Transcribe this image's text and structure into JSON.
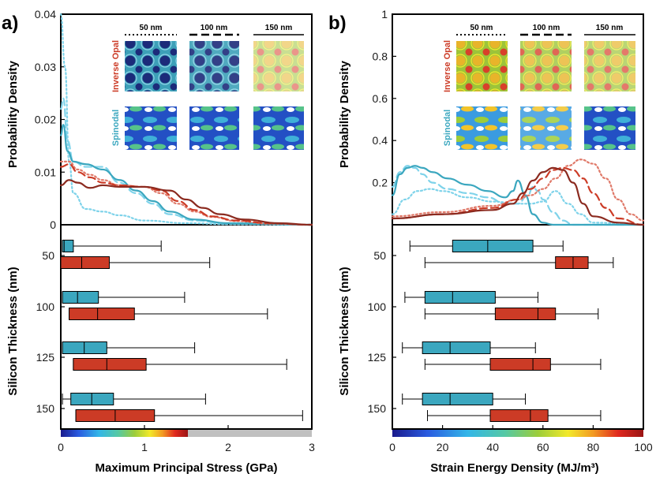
{
  "colors": {
    "spinodal": "#3ba7bf",
    "inverse_opal": "#cc3b26",
    "median_dark": "#8b2a1f",
    "axis": "#000000"
  },
  "chart_data": [
    {
      "panel": "a)",
      "type": "line",
      "xlabel": "Maximum Principal Stress (GPa)",
      "ylabel": "Probability Density",
      "xlim": [
        0,
        3
      ],
      "ylim": [
        0,
        0.04
      ],
      "x_ticks": [
        "0",
        "1",
        "2",
        "3"
      ],
      "y_ticks": [
        "0",
        "0.01",
        "0.02",
        "0.03",
        "0.04"
      ],
      "inset": {
        "scale_labels": [
          "50 nm",
          "100 nm",
          "150 nm"
        ],
        "row_labels": [
          "Inverse Opal",
          "Spinodal"
        ]
      },
      "series": [
        {
          "style": "dotted",
          "color": "#7fd3ea",
          "x": [
            0,
            0.05,
            0.1,
            0.15,
            0.3,
            0.5,
            0.7,
            1.0,
            1.5,
            2,
            3
          ],
          "y": [
            0.04,
            0.03,
            0.012,
            0.006,
            0.003,
            0.0025,
            0.0018,
            0.0008,
            0.0003,
            0.0001,
            0
          ]
        },
        {
          "style": "dashed",
          "color": "#7fd3ea",
          "x": [
            0,
            0.03,
            0.08,
            0.15,
            0.3,
            0.5,
            0.7,
            0.9,
            1.1,
            1.3,
            1.6,
            2,
            3
          ],
          "y": [
            0.022,
            0.024,
            0.016,
            0.012,
            0.011,
            0.011,
            0.008,
            0.006,
            0.004,
            0.002,
            0.0008,
            0.0002,
            0
          ]
        },
        {
          "style": "solid",
          "color": "#3ba7bf",
          "x": [
            0,
            0.03,
            0.08,
            0.15,
            0.3,
            0.5,
            0.7,
            0.9,
            1.1,
            1.3,
            1.6,
            2,
            3
          ],
          "y": [
            0.017,
            0.019,
            0.014,
            0.012,
            0.0115,
            0.0105,
            0.0085,
            0.0065,
            0.0045,
            0.0025,
            0.001,
            0.0003,
            0
          ]
        },
        {
          "style": "dotted",
          "color": "#e07a6a",
          "x": [
            0,
            0.1,
            0.2,
            0.35,
            0.5,
            0.7,
            1.0,
            1.2,
            1.4,
            1.6,
            1.8,
            2.1,
            2.5,
            3
          ],
          "y": [
            0.012,
            0.012,
            0.0105,
            0.0095,
            0.0085,
            0.0075,
            0.0072,
            0.006,
            0.004,
            0.0025,
            0.0015,
            0.0007,
            0.0002,
            0
          ]
        },
        {
          "style": "dashed",
          "color": "#cc3b26",
          "x": [
            0,
            0.1,
            0.2,
            0.35,
            0.5,
            0.7,
            1.0,
            1.2,
            1.4,
            1.6,
            1.8,
            2.1,
            2.5,
            3
          ],
          "y": [
            0.011,
            0.0115,
            0.01,
            0.009,
            0.008,
            0.0075,
            0.0072,
            0.0065,
            0.0045,
            0.0028,
            0.0016,
            0.0008,
            0.0003,
            0
          ]
        },
        {
          "style": "solid",
          "color": "#8b2a1f",
          "x": [
            0,
            0.1,
            0.2,
            0.35,
            0.5,
            0.7,
            1.0,
            1.3,
            1.5,
            1.7,
            1.9,
            2.2,
            2.6,
            3
          ],
          "y": [
            0.0075,
            0.0085,
            0.008,
            0.007,
            0.0075,
            0.0072,
            0.0072,
            0.0065,
            0.0048,
            0.0032,
            0.002,
            0.001,
            0.0003,
            0
          ]
        }
      ]
    },
    {
      "panel": "a)",
      "type": "box",
      "orientation": "horizontal",
      "ylabel": "Silicon Thickness (nm)",
      "categories": [
        "50",
        "100",
        "125",
        "150"
      ],
      "colorbar": {
        "range": [
          0,
          1.55
        ],
        "gray_after": 1.55
      },
      "series": [
        {
          "color": "#3ba7bf",
          "boxes": [
            {
              "min": 0.02,
              "q1": 0.02,
              "median": 0.04,
              "q3": 0.15,
              "max": 1.2
            },
            {
              "min": 0.02,
              "q1": 0.02,
              "median": 0.2,
              "q3": 0.45,
              "max": 1.48
            },
            {
              "min": 0.02,
              "q1": 0.02,
              "median": 0.28,
              "q3": 0.55,
              "max": 1.6
            },
            {
              "min": 0.02,
              "q1": 0.12,
              "median": 0.37,
              "q3": 0.63,
              "max": 1.73
            }
          ]
        },
        {
          "color": "#cc3b26",
          "boxes": [
            {
              "min": 0.0,
              "q1": 0.0,
              "median": 0.25,
              "q3": 0.58,
              "max": 1.78
            },
            {
              "min": 0.1,
              "q1": 0.1,
              "median": 0.44,
              "q3": 0.88,
              "max": 2.47
            },
            {
              "min": 0.15,
              "q1": 0.15,
              "median": 0.55,
              "q3": 1.02,
              "max": 2.7
            },
            {
              "min": 0.18,
              "q1": 0.18,
              "median": 0.65,
              "q3": 1.12,
              "max": 2.89
            }
          ]
        }
      ]
    },
    {
      "panel": "b)",
      "type": "line",
      "xlabel": "Strain Energy Density (MJ/m³)",
      "ylabel": "Probability Density",
      "xlim": [
        0,
        100
      ],
      "ylim": [
        0,
        1
      ],
      "x_ticks": [
        "0",
        "20",
        "40",
        "60",
        "80",
        "100"
      ],
      "y_ticks": [
        "0.2",
        "0.4",
        "0.6",
        "0.8",
        "1"
      ],
      "inset": {
        "scale_labels": [
          "50 nm",
          "100 nm",
          "150 nm"
        ],
        "row_labels": [
          "Inverse Opal",
          "Spinodal"
        ]
      },
      "series": [
        {
          "style": "dotted",
          "color": "#7fd3ea",
          "x": [
            0,
            5,
            10,
            15,
            20,
            30,
            40,
            50,
            55,
            60,
            65,
            70,
            75,
            80,
            100
          ],
          "y": [
            0.05,
            0.12,
            0.16,
            0.17,
            0.16,
            0.13,
            0.11,
            0.1,
            0.1,
            0.11,
            0.16,
            0.1,
            0.05,
            0.01,
            0
          ]
        },
        {
          "style": "dashed",
          "color": "#7fd3ea",
          "x": [
            0,
            3,
            6,
            9,
            12,
            16,
            22,
            30,
            38,
            45,
            50,
            54,
            56,
            58,
            60,
            64,
            68,
            72,
            100
          ],
          "y": [
            0.18,
            0.25,
            0.28,
            0.27,
            0.24,
            0.2,
            0.17,
            0.15,
            0.13,
            0.1,
            0.1,
            0.14,
            0.18,
            0.16,
            0.12,
            0.06,
            0.02,
            0,
            0
          ]
        },
        {
          "style": "solid",
          "color": "#3ba7bf",
          "x": [
            0,
            3,
            6,
            9,
            12,
            16,
            22,
            30,
            38,
            45,
            48,
            50,
            53,
            56,
            60,
            64,
            100
          ],
          "y": [
            0.14,
            0.24,
            0.27,
            0.28,
            0.27,
            0.25,
            0.22,
            0.19,
            0.16,
            0.13,
            0.16,
            0.21,
            0.14,
            0.05,
            0.01,
            0,
            0
          ]
        },
        {
          "style": "dotted",
          "color": "#e07a6a",
          "x": [
            0,
            20,
            40,
            50,
            55,
            60,
            65,
            70,
            75,
            80,
            85,
            90,
            95,
            100
          ],
          "y": [
            0.04,
            0.06,
            0.09,
            0.12,
            0.14,
            0.17,
            0.22,
            0.28,
            0.31,
            0.29,
            0.22,
            0.12,
            0.05,
            0.02
          ]
        },
        {
          "style": "dashed",
          "color": "#cc3b26",
          "x": [
            0,
            20,
            40,
            50,
            55,
            60,
            64,
            68,
            72,
            76,
            80,
            85,
            90,
            100
          ],
          "y": [
            0.03,
            0.05,
            0.08,
            0.12,
            0.17,
            0.22,
            0.26,
            0.27,
            0.26,
            0.22,
            0.15,
            0.08,
            0.03,
            0
          ]
        },
        {
          "style": "solid",
          "color": "#8b2a1f",
          "x": [
            0,
            20,
            40,
            48,
            52,
            56,
            60,
            64,
            68,
            72,
            76,
            80,
            90,
            100
          ],
          "y": [
            0.03,
            0.05,
            0.07,
            0.1,
            0.15,
            0.21,
            0.25,
            0.27,
            0.26,
            0.2,
            0.1,
            0.04,
            0.01,
            0
          ]
        }
      ]
    },
    {
      "panel": "b)",
      "type": "box",
      "orientation": "horizontal",
      "ylabel": "Silicon Thickness (nm)",
      "categories": [
        "50",
        "100",
        "125",
        "150"
      ],
      "colorbar": {
        "range": [
          0,
          100
        ]
      },
      "series": [
        {
          "color": "#3ba7bf",
          "boxes": [
            {
              "min": 7,
              "q1": 24,
              "median": 38,
              "q3": 56,
              "max": 68
            },
            {
              "min": 5,
              "q1": 13,
              "median": 24,
              "q3": 41,
              "max": 58
            },
            {
              "min": 4,
              "q1": 12,
              "median": 23,
              "q3": 39,
              "max": 57
            },
            {
              "min": 4,
              "q1": 12,
              "median": 23,
              "q3": 40,
              "max": 53
            }
          ]
        },
        {
          "color": "#cc3b26",
          "boxes": [
            {
              "min": 13,
              "q1": 65,
              "median": 72,
              "q3": 78,
              "max": 88
            },
            {
              "min": 13,
              "q1": 41,
              "median": 58,
              "q3": 65,
              "max": 82
            },
            {
              "min": 13,
              "q1": 39,
              "median": 56,
              "q3": 63,
              "max": 83
            },
            {
              "min": 14,
              "q1": 39,
              "median": 55,
              "q3": 62,
              "max": 83
            }
          ]
        }
      ]
    }
  ]
}
